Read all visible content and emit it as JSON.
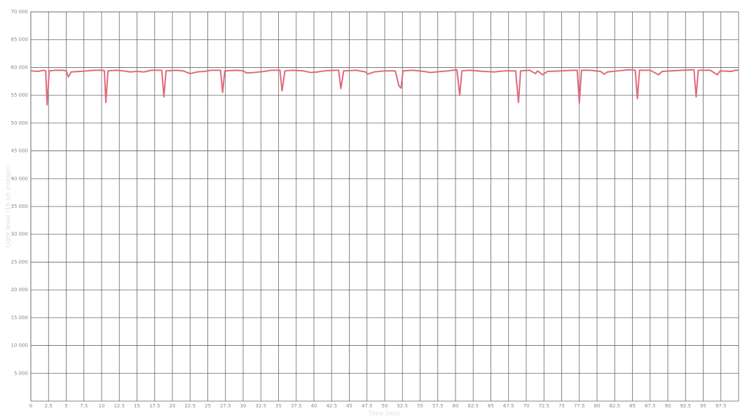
{
  "chart_data": {
    "type": "line",
    "x_label": "Time (ms)",
    "y_label": "Light level (16 bit integer)",
    "x": [
      0,
      1,
      1.8,
      2.1,
      2.3,
      2.6,
      3.5,
      4.5,
      5,
      5.3,
      5.7,
      7,
      8,
      9,
      10.2,
      10.4,
      10.6,
      10.9,
      12,
      13,
      14,
      15,
      16,
      17,
      18.5,
      18.8,
      19.1,
      20.5,
      21.5,
      22.5,
      23.5,
      24.5,
      25.5,
      26.8,
      27.1,
      27.4,
      29,
      30,
      30.5,
      31.5,
      33,
      34,
      35.2,
      35.5,
      35.9,
      37,
      38.5,
      39.5,
      40.5,
      41.5,
      43,
      43.5,
      43.8,
      44.2,
      46,
      47.3,
      47.6,
      48.5,
      50,
      51.5,
      52,
      52.3,
      52.6,
      54,
      55.5,
      56.5,
      58,
      59,
      60.2,
      60.6,
      60.9,
      62,
      64,
      65.5,
      67,
      68.5,
      68.9,
      69.2,
      70.5,
      71.3,
      71.6,
      72.3,
      73,
      75,
      76.5,
      77.2,
      77.5,
      77.8,
      79,
      80.5,
      81,
      81.5,
      83,
      84.5,
      85.4,
      85.7,
      86,
      87.5,
      88.7,
      89.2,
      90.5,
      92,
      93.7,
      94,
      94.3,
      96,
      97,
      97.4,
      99,
      99.5,
      100
    ],
    "values": [
      59400,
      59300,
      59500,
      59400,
      53300,
      59400,
      59500,
      59500,
      59400,
      58300,
      59200,
      59300,
      59400,
      59500,
      59500,
      59400,
      53700,
      59400,
      59500,
      59400,
      59200,
      59300,
      59200,
      59500,
      59500,
      54700,
      59400,
      59500,
      59400,
      58900,
      59200,
      59300,
      59500,
      59500,
      55500,
      59400,
      59500,
      59400,
      59000,
      59100,
      59300,
      59500,
      59500,
      55800,
      59400,
      59500,
      59400,
      59100,
      59200,
      59400,
      59500,
      59500,
      56200,
      59400,
      59500,
      59200,
      58800,
      59200,
      59400,
      59400,
      56700,
      56300,
      59400,
      59500,
      59300,
      59100,
      59300,
      59400,
      59600,
      55000,
      59400,
      59500,
      59300,
      59200,
      59400,
      59400,
      53700,
      59400,
      59500,
      58900,
      59400,
      58700,
      59300,
      59400,
      59500,
      59500,
      53600,
      59500,
      59500,
      59300,
      58800,
      59200,
      59400,
      59600,
      59500,
      54400,
      59500,
      59500,
      58700,
      59300,
      59400,
      59500,
      59600,
      54700,
      59500,
      59500,
      58700,
      59400,
      59300,
      59500,
      59500
    ],
    "color": "#e06a78",
    "xlim": [
      0,
      100
    ],
    "xticks": [
      0,
      2.5,
      5,
      7.5,
      10,
      12.5,
      15,
      17.5,
      20,
      22.5,
      25,
      27.5,
      30,
      32.5,
      35,
      37.5,
      40,
      42.5,
      45,
      47.5,
      50,
      52.5,
      55,
      57.5,
      60,
      62.5,
      65,
      67.5,
      70,
      72.5,
      75,
      77.5,
      80,
      82.5,
      85,
      87.5,
      90,
      92.5,
      95,
      97.5
    ],
    "ylim": [
      0,
      70000
    ],
    "yticks": [
      {
        "value": 5000,
        "label": "5 000"
      },
      {
        "value": 10000,
        "label": "10 000"
      },
      {
        "value": 15000,
        "label": "15 000"
      },
      {
        "value": 20000,
        "label": "20 000"
      },
      {
        "value": 25000,
        "label": "25 000"
      },
      {
        "value": 30000,
        "label": "30 000"
      },
      {
        "value": 35000,
        "label": "35 000"
      },
      {
        "value": 40000,
        "label": "40 000"
      },
      {
        "value": 45000,
        "label": "45 000"
      },
      {
        "value": 50000,
        "label": "50 000"
      },
      {
        "value": 55000,
        "label": "55 000"
      },
      {
        "value": 60000,
        "label": "60 000"
      },
      {
        "value": 65000,
        "label": "65 000"
      },
      {
        "value": 70000,
        "label": "70 000"
      }
    ],
    "grid": true
  }
}
